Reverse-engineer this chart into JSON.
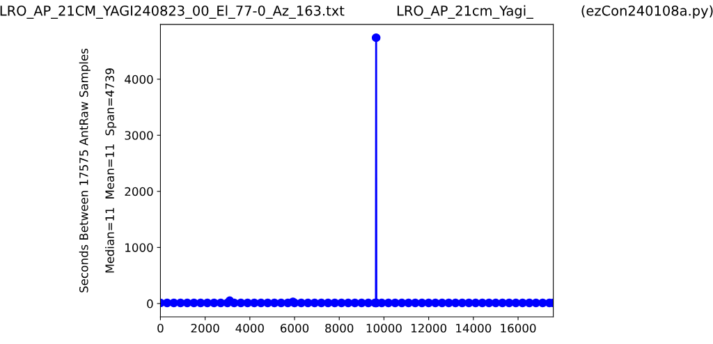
{
  "chart_data": {
    "type": "line",
    "title": "LRO_AP_21CM_YAGI240823_00_El_77-0_Az_163.txt            LRO_AP_21cm_Yagi_           (ezCon240108a.py)",
    "ylabel": "Seconds Between 17575 AntRaw Samples\n\nMedian=11  Mean=11  Span=4739",
    "x": [
      0,
      300,
      600,
      900,
      1200,
      1500,
      1800,
      2100,
      2400,
      2700,
      3000,
      3100,
      3300,
      3600,
      3900,
      4200,
      4500,
      4800,
      5100,
      5400,
      5700,
      5930,
      6000,
      6300,
      6600,
      6900,
      7200,
      7500,
      7800,
      8100,
      8400,
      8700,
      9000,
      9300,
      9600,
      9640,
      9650,
      9660,
      9900,
      10200,
      10500,
      10800,
      11100,
      11400,
      11700,
      12000,
      12300,
      12600,
      12900,
      13200,
      13500,
      13800,
      14100,
      14400,
      14700,
      15000,
      15300,
      15600,
      15900,
      16200,
      16500,
      16800,
      17100,
      17400,
      17574
    ],
    "series": [
      {
        "color": "#0000ff",
        "values": [
          11,
          11,
          11,
          11,
          11,
          11,
          11,
          11,
          11,
          11,
          11,
          50,
          11,
          11,
          11,
          11,
          11,
          11,
          11,
          11,
          11,
          30,
          11,
          11,
          11,
          11,
          11,
          11,
          11,
          11,
          11,
          11,
          11,
          11,
          11,
          11,
          4739,
          11,
          11,
          11,
          11,
          11,
          11,
          11,
          11,
          11,
          11,
          11,
          11,
          11,
          11,
          11,
          11,
          11,
          11,
          11,
          11,
          11,
          11,
          11,
          11,
          11,
          11,
          11,
          11
        ]
      }
    ],
    "xlim": [
      0,
      17575
    ],
    "ylim": [
      -237,
      4976
    ],
    "xticks": [
      0,
      2000,
      4000,
      6000,
      8000,
      10000,
      12000,
      14000,
      16000
    ],
    "yticks": [
      0,
      1000,
      2000,
      3000,
      4000
    ],
    "marker": "circle",
    "line_style": "solid",
    "grid": false,
    "legend": false
  }
}
